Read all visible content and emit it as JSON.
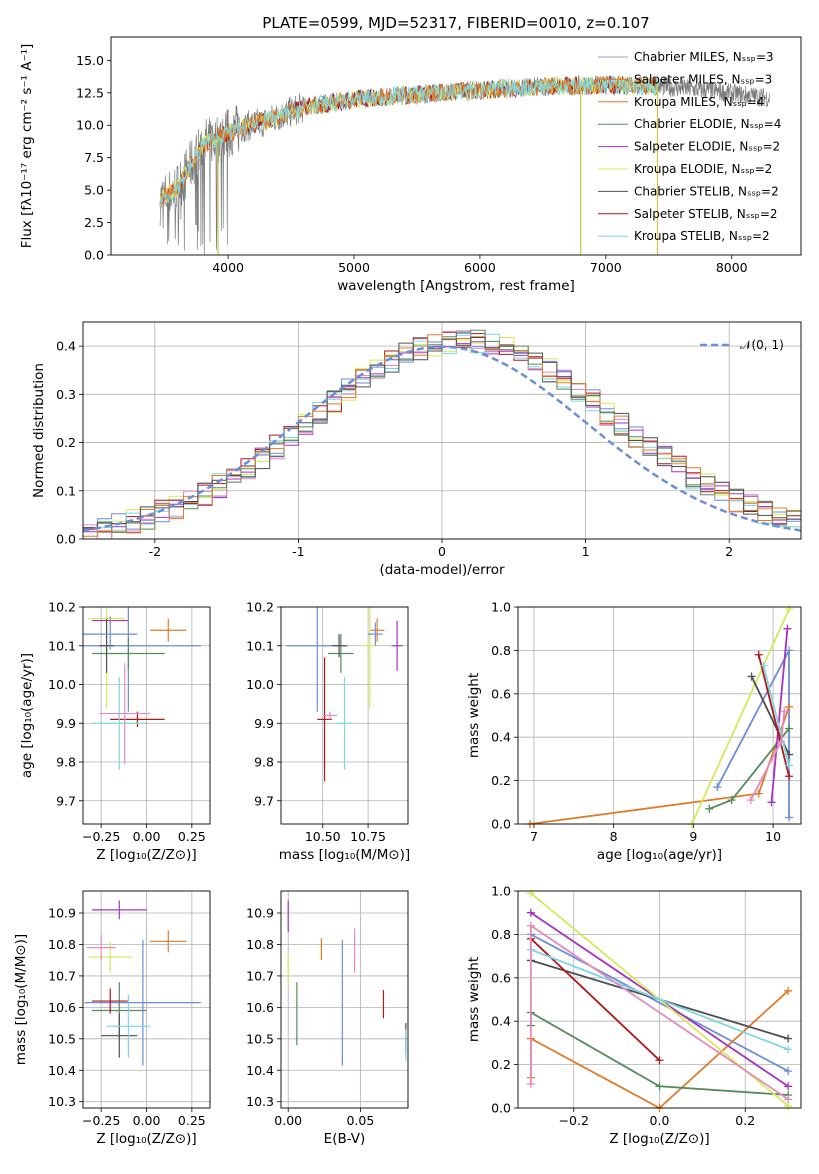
{
  "colors": [
    "#6b8ed6",
    "#e07b2a",
    "#558b5b",
    "#a335c2",
    "#d7e85a",
    "#4f4f4f",
    "#b0171b",
    "#7fd7e3",
    "#e58bbd"
  ],
  "chart_data": [
    {
      "id": "spectrum",
      "type": "line",
      "title": "PLATE=0599, MJD=52317, FIBERID=0010, z=0.107",
      "xlabel": "wavelength [Angstrom, rest frame]",
      "ylabel": "Flux [fλ10⁻¹⁷ erg cm⁻² s⁻¹ A⁻¹]",
      "xlim": [
        3070,
        8550
      ],
      "ylim": [
        0,
        16.8
      ],
      "xticks": [
        4000,
        5000,
        6000,
        7000,
        8000
      ],
      "yticks": [
        0.0,
        2.5,
        5.0,
        7.5,
        10.0,
        12.5,
        15.0
      ],
      "grid": false,
      "legend_position": "right",
      "legend": [
        "Chabrier MILES, Nₛₛₚ=3",
        "Salpeter MILES, Nₛₛₚ=3",
        "Kroupa MILES, Nₛₛₚ=4",
        "Chabrier ELODIE, Nₛₛₚ=4",
        "Salpeter ELODIE, Nₛₛₚ=2",
        "Kroupa ELODIE, Nₛₛₚ=2",
        "Chabrier STELIB, Nₛₛₚ=2",
        "Salpeter STELIB, Nₛₛₚ=2",
        "Kroupa STELIB, Nₛₛₚ=2"
      ],
      "data_envelope": {
        "x": [
          3460,
          3600,
          3800,
          3950,
          4100,
          4300,
          4600,
          5000,
          5500,
          6000,
          6500,
          7000,
          7400,
          7800,
          8300
        ],
        "y": [
          4.2,
          5.2,
          8.5,
          9.2,
          9.8,
          10.3,
          11.4,
          12.0,
          12.4,
          12.7,
          13.0,
          13.1,
          13.0,
          12.7,
          12.1
        ]
      },
      "model_range": [
        3460,
        7420
      ],
      "spikes": [
        {
          "x": 3920,
          "y": 0
        },
        {
          "x": 6800,
          "y": 0
        },
        {
          "x": 7410,
          "y": 0
        }
      ]
    },
    {
      "id": "residuals",
      "type": "step",
      "xlabel": "(data-model)/error",
      "ylabel": "Normed distribution",
      "xlim": [
        -2.5,
        2.5
      ],
      "ylim": [
        0,
        0.45
      ],
      "xticks": [
        -2,
        -1,
        0,
        1,
        2
      ],
      "yticks": [
        0.0,
        0.1,
        0.2,
        0.3,
        0.4
      ],
      "grid": true,
      "legend": [
        "𝒩(0, 1)"
      ],
      "legend_position": "top-right",
      "bin_width": 0.1
    },
    {
      "id": "z-age",
      "type": "errorbar",
      "xlabel": "Z [log₁₀(Z/Z⊙)]",
      "ylabel": "age  [log₁₀(age/yr)]",
      "xlim": [
        -0.35,
        0.35
      ],
      "ylim": [
        9.64,
        10.2
      ],
      "xticks": [
        -0.25,
        0.0,
        0.25
      ],
      "xticklabels": [
        "−0.25",
        "0.00",
        "0.25"
      ],
      "yticks": [
        9.7,
        9.8,
        9.9,
        10.0,
        10.1,
        10.2
      ],
      "grid": true,
      "points": [
        {
          "x": -0.1,
          "xerr": 0.4,
          "y": 10.1,
          "yerr": 0.17
        },
        {
          "x": 0.12,
          "xerr": 0.1,
          "y": 10.14,
          "yerr": 0.03
        },
        {
          "x": -0.1,
          "xerr": 0.2,
          "y": 10.08,
          "yerr": 0.04
        },
        {
          "x": -0.2,
          "xerr": 0.1,
          "y": 10.165,
          "yerr": 0.01
        },
        {
          "x": -0.22,
          "xerr": 0.1,
          "y": 10.17,
          "yerr": 0.23
        },
        {
          "x": -0.22,
          "xerr": 0.04,
          "y": 10.1,
          "yerr": 0.07
        },
        {
          "x": -0.05,
          "xerr": 0.15,
          "y": 9.91,
          "yerr": 0.02
        },
        {
          "x": -0.15,
          "xerr": 0.15,
          "y": 9.9,
          "yerr": 0.12
        },
        {
          "x": -0.12,
          "xerr": 0.14,
          "y": 9.925,
          "yerr": 0.13
        },
        {
          "x": -0.2,
          "xerr": 0.15,
          "y": 10.13,
          "yerr": 0.04
        }
      ]
    },
    {
      "id": "mass-age",
      "type": "errorbar",
      "xlabel": "mass [log₁₀(M/M⊙)]",
      "xlim": [
        10.27,
        10.97
      ],
      "ylim": [
        9.64,
        10.2
      ],
      "xticks": [
        10.5,
        10.75
      ],
      "xticklabels": [
        "10.50",
        "10.75"
      ],
      "yticks": [
        9.7,
        9.8,
        9.9,
        10.0,
        10.1,
        10.2
      ],
      "grid": true,
      "points": [
        {
          "x": 10.47,
          "xerr": 0.17,
          "y": 10.1,
          "yerr": 0.17
        },
        {
          "x": 10.8,
          "xerr": 0.04,
          "y": 10.14,
          "yerr": 0.03
        },
        {
          "x": 10.6,
          "xerr": 0.07,
          "y": 10.08,
          "yerr": 0.05
        },
        {
          "x": 10.91,
          "xerr": 0.03,
          "y": 10.1,
          "yerr": 0.065
        },
        {
          "x": 10.76,
          "xerr": 0.04,
          "y": 10.1,
          "yerr": 0.16
        },
        {
          "x": 10.59,
          "xerr": 0.04,
          "y": 10.1,
          "yerr": 0.03
        },
        {
          "x": 10.51,
          "xerr": 0.04,
          "y": 9.91,
          "yerr": 0.16
        },
        {
          "x": 10.62,
          "xerr": 0.05,
          "y": 9.9,
          "yerr": 0.12
        },
        {
          "x": 10.54,
          "xerr": 0.04,
          "y": 9.92,
          "yerr": 0.01
        },
        {
          "x": 10.79,
          "xerr": 0.04,
          "y": 10.13,
          "yerr": 0.03
        }
      ]
    },
    {
      "id": "age-weight",
      "type": "line",
      "xlabel": "age  [log₁₀(age/yr)]",
      "ylabel": "mass weight",
      "xlim": [
        6.8,
        10.35
      ],
      "ylim": [
        0,
        1
      ],
      "xticks": [
        7,
        8,
        9,
        10
      ],
      "yticks": [
        0.0,
        0.2,
        0.4,
        0.6,
        0.8,
        1.0
      ],
      "grid": true,
      "series": [
        {
          "x": [
            9.3,
            10.2,
            10.2
          ],
          "y": [
            0.17,
            0.8,
            0.03
          ]
        },
        {
          "x": [
            6.95,
            9.82,
            10.2
          ],
          "y": [
            0.0,
            0.14,
            0.54
          ]
        },
        {
          "x": [
            9.2,
            9.48,
            10.2
          ],
          "y": [
            0.07,
            0.11,
            0.44
          ]
        },
        {
          "x": [
            9.98,
            10.18
          ],
          "y": [
            0.1,
            0.9
          ]
        },
        {
          "x": [
            8.98,
            10.2
          ],
          "y": [
            0.0,
            0.99
          ]
        },
        {
          "x": [
            9.73,
            10.2
          ],
          "y": [
            0.68,
            0.32
          ]
        },
        {
          "x": [
            9.82,
            10.2
          ],
          "y": [
            0.78,
            0.22
          ]
        },
        {
          "x": [
            9.88,
            10.2
          ],
          "y": [
            0.73,
            0.27
          ]
        },
        {
          "x": [
            9.72,
            10.1,
            10.14
          ],
          "y": [
            0.11,
            0.38,
            0.52
          ]
        }
      ]
    },
    {
      "id": "z-mass",
      "type": "errorbar",
      "xlabel": "Z [log₁₀(Z/Z⊙)]",
      "ylabel": "mass [log₁₀(M/M⊙)]",
      "xlim": [
        -0.35,
        0.35
      ],
      "ylim": [
        10.28,
        10.97
      ],
      "xticks": [
        -0.25,
        0.0,
        0.25
      ],
      "xticklabels": [
        "−0.25",
        "0.00",
        "0.25"
      ],
      "yticks": [
        10.3,
        10.4,
        10.5,
        10.6,
        10.7,
        10.8,
        10.9
      ],
      "grid": true,
      "points": [
        {
          "x": -0.02,
          "xerr": 0.32,
          "y": 10.615,
          "yerr": 0.2
        },
        {
          "x": 0.12,
          "xerr": 0.1,
          "y": 10.81,
          "yerr": 0.035
        },
        {
          "x": -0.15,
          "xerr": 0.15,
          "y": 10.59,
          "yerr": 0.09
        },
        {
          "x": -0.15,
          "xerr": 0.15,
          "y": 10.91,
          "yerr": 0.03
        },
        {
          "x": -0.2,
          "xerr": 0.12,
          "y": 10.76,
          "yerr": 0.05
        },
        {
          "x": -0.15,
          "xerr": 0.1,
          "y": 10.51,
          "yerr": 0.07
        },
        {
          "x": -0.2,
          "xerr": 0.1,
          "y": 10.62,
          "yerr": 0.04
        },
        {
          "x": -0.1,
          "xerr": 0.12,
          "y": 10.54,
          "yerr": 0.1
        },
        {
          "x": -0.25,
          "xerr": 0.08,
          "y": 10.79,
          "yerr": 0.04
        }
      ]
    },
    {
      "id": "ebv-mass",
      "type": "errorbar",
      "xlabel": "E(B-V)",
      "xlim": [
        -0.005,
        0.083
      ],
      "ylim": [
        10.28,
        10.97
      ],
      "xticks": [
        0.0,
        0.05
      ],
      "xticklabels": [
        "0.00",
        "0.05"
      ],
      "yticks": [
        10.3,
        10.4,
        10.5,
        10.6,
        10.7,
        10.8,
        10.9
      ],
      "grid": true,
      "points": [
        {
          "x": 0.0375,
          "y": 10.615,
          "yerr": 0.2
        },
        {
          "x": 0.023,
          "y": 10.785,
          "yerr": 0.035
        },
        {
          "x": 0.006,
          "y": 10.58,
          "yerr": 0.1
        },
        {
          "x": 0.0,
          "y": 10.89,
          "yerr": 0.05
        },
        {
          "x": 0.0,
          "y": 10.72,
          "yerr": 0.05
        },
        {
          "x": 0.0815,
          "y": 10.5,
          "yerr": 0.05
        },
        {
          "x": 0.066,
          "y": 10.61,
          "yerr": 0.045
        },
        {
          "x": 0.0815,
          "y": 10.48,
          "yerr": 0.05
        },
        {
          "x": 0.046,
          "y": 10.78,
          "yerr": 0.07
        }
      ]
    },
    {
      "id": "z-weight",
      "type": "line",
      "xlabel": "Z [log₁₀(Z/Z⊙)]",
      "ylabel": "mass weight",
      "xlim": [
        -0.33,
        0.33
      ],
      "ylim": [
        0,
        1
      ],
      "xticks": [
        -0.2,
        0.0,
        0.2
      ],
      "xticklabels": [
        "−0.2",
        "0.0",
        "0.2"
      ],
      "yticks": [
        0.0,
        0.2,
        0.4,
        0.6,
        0.8,
        1.0
      ],
      "grid": true,
      "series": [
        {
          "x": [
            -0.3,
            0.3
          ],
          "y": [
            0.8,
            0.17
          ]
        },
        {
          "x": [
            -0.3,
            -0.3,
            0.0,
            0.3
          ],
          "y": [
            0.14,
            0.32,
            0.0,
            0.54
          ]
        },
        {
          "x": [
            -0.3,
            -0.3,
            0.0,
            0.3
          ],
          "y": [
            0.38,
            0.44,
            0.1,
            0.06
          ]
        },
        {
          "x": [
            -0.3,
            0.3
          ],
          "y": [
            0.9,
            0.1
          ]
        },
        {
          "x": [
            -0.3,
            0.3
          ],
          "y": [
            0.99,
            0.01
          ]
        },
        {
          "x": [
            -0.3,
            0.3
          ],
          "y": [
            0.68,
            0.32
          ]
        },
        {
          "x": [
            -0.3,
            0.0
          ],
          "y": [
            0.78,
            0.22
          ]
        },
        {
          "x": [
            -0.3,
            0.3
          ],
          "y": [
            0.73,
            0.27
          ]
        },
        {
          "x": [
            -0.3,
            -0.3,
            0.3
          ],
          "y": [
            0.11,
            0.84,
            0.04
          ]
        }
      ]
    }
  ]
}
